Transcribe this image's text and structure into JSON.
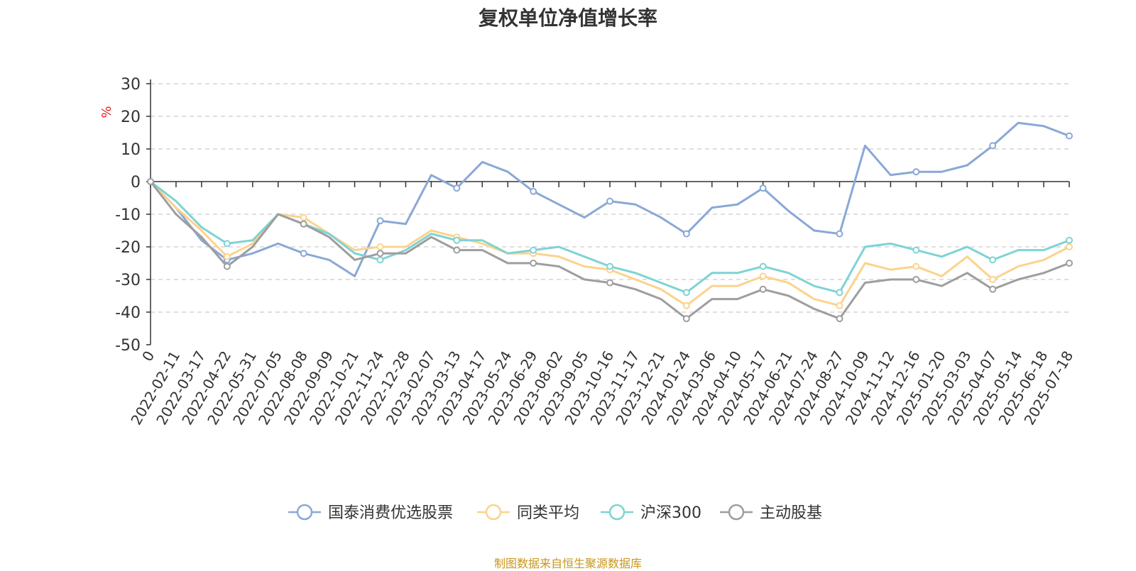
{
  "chart_data": {
    "type": "line",
    "title": "复权单位净值增长率",
    "ylabel": "%",
    "ylim": [
      -50,
      30
    ],
    "yticks": [
      30,
      20,
      10,
      0,
      -10,
      -20,
      -30,
      -40,
      -50
    ],
    "x_tick_labels": [
      "0",
      "2022-02-11",
      "2022-03-17",
      "2022-04-22",
      "2022-05-31",
      "2022-07-05",
      "2022-08-08",
      "2022-09-09",
      "2022-10-21",
      "2022-11-24",
      "2022-12-28",
      "2023-02-07",
      "2023-03-13",
      "2023-04-17",
      "2023-05-24",
      "2023-06-29",
      "2023-08-02",
      "2023-09-05",
      "2023-10-16",
      "2023-11-17",
      "2023-12-21",
      "2024-01-24",
      "2024-03-06",
      "2024-04-10",
      "2024-05-17",
      "2024-06-21",
      "2024-07-24",
      "2024-08-27",
      "2024-10-09",
      "2024-11-12",
      "2024-12-16",
      "2025-01-20",
      "2025-03-03",
      "2025-04-07",
      "2025-05-14",
      "2025-06-18",
      "2025-07-18"
    ],
    "grid": true,
    "legend_position": "bottom",
    "series": [
      {
        "name": "国泰消费优选股票",
        "color": "#8aa8d6",
        "values": [
          0,
          -8,
          -18,
          -24,
          -22,
          -19,
          -22,
          -24,
          -29,
          -12,
          -13,
          2,
          -2,
          6,
          3,
          -3,
          -7,
          -11,
          -6,
          -7,
          -11,
          -16,
          -8,
          -7,
          -2,
          -9,
          -15,
          -16,
          11,
          2,
          3,
          3,
          5,
          11,
          18,
          17,
          14
        ]
      },
      {
        "name": "同类平均",
        "color": "#fbd38d",
        "values": [
          0,
          -8,
          -15,
          -23,
          -19,
          -10,
          -11,
          -16,
          -21,
          -20,
          -20,
          -15,
          -17,
          -19,
          -22,
          -22,
          -23,
          -26,
          -27,
          -30,
          -33,
          -38,
          -32,
          -32,
          -29,
          -31,
          -36,
          -38,
          -25,
          -27,
          -26,
          -29,
          -23,
          -30,
          -26,
          -24,
          -20
        ]
      },
      {
        "name": "沪深300",
        "color": "#7fd3d3",
        "values": [
          0,
          -6,
          -14,
          -19,
          -18,
          -10,
          -13,
          -16,
          -22,
          -24,
          -21,
          -16,
          -18,
          -18,
          -22,
          -21,
          -20,
          -23,
          -26,
          -28,
          -31,
          -34,
          -28,
          -28,
          -26,
          -28,
          -32,
          -34,
          -20,
          -19,
          -21,
          -23,
          -20,
          -24,
          -21,
          -21,
          -18
        ]
      },
      {
        "name": "主动股基",
        "color": "#9e9e9e",
        "values": [
          0,
          -10,
          -17,
          -26,
          -20,
          -10,
          -13,
          -17,
          -24,
          -22,
          -22,
          -17,
          -21,
          -21,
          -25,
          -25,
          -26,
          -30,
          -31,
          -33,
          -36,
          -42,
          -36,
          -36,
          -33,
          -35,
          -39,
          -42,
          -31,
          -30,
          -30,
          -32,
          -28,
          -33,
          -30,
          -28,
          -25
        ]
      }
    ]
  },
  "source": "制图数据来自恒生聚源数据库"
}
